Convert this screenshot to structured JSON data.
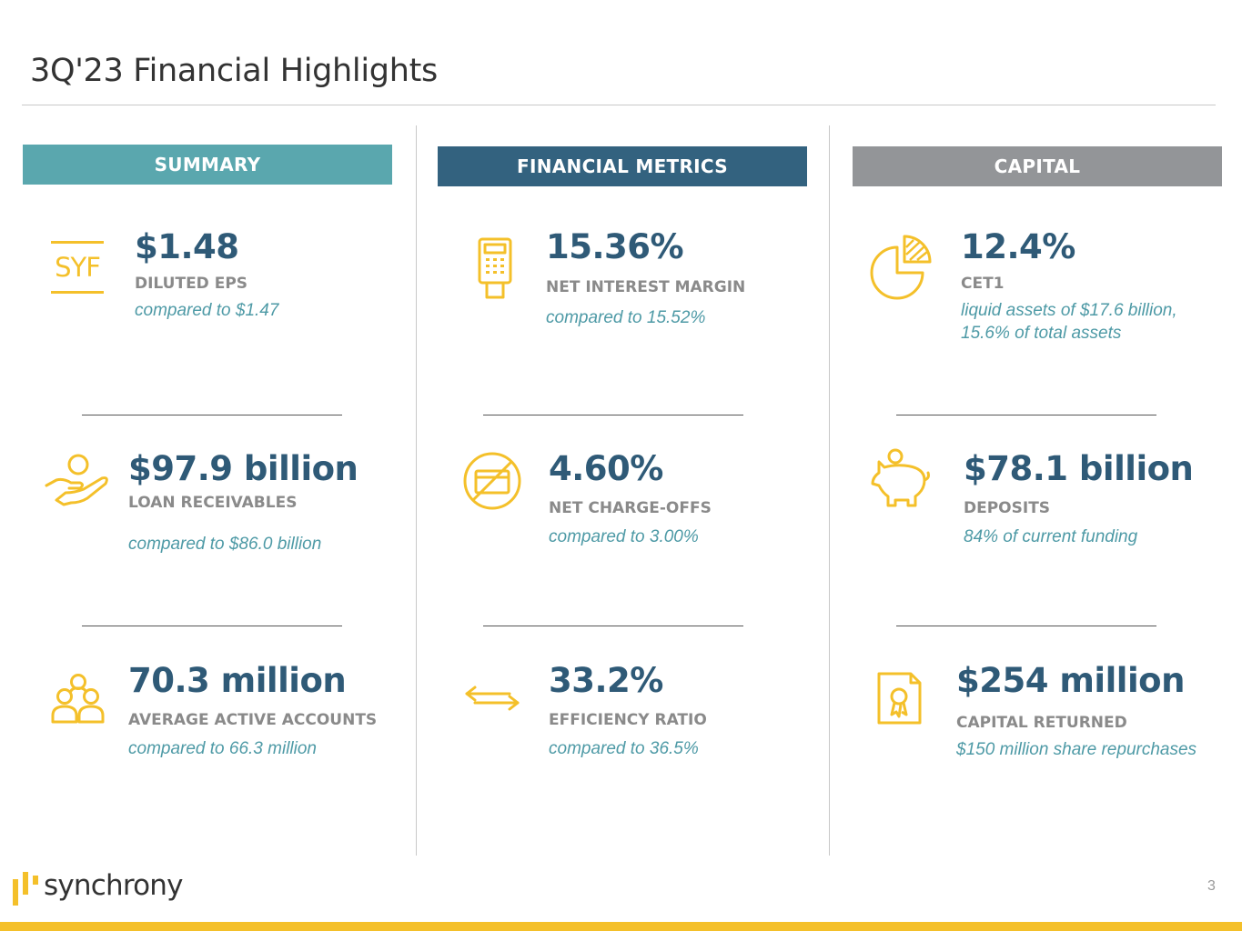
{
  "page": {
    "title": "3Q'23 Financial Highlights",
    "page_number": "3",
    "brand": "synchrony"
  },
  "colors": {
    "summary_header": "#5aa7ae",
    "metrics_header": "#33627f",
    "capital_header": "#939598",
    "value_text": "#2f5a77",
    "label_text": "#8a8a8a",
    "note_text": "#4e9aa6",
    "icon": "#f4c02a"
  },
  "columns": [
    {
      "header": "SUMMARY",
      "items": [
        {
          "icon": "syf-logo-icon",
          "icon_text": "SYF",
          "value": "$1.48",
          "label": "DILUTED EPS",
          "note": "compared to $1.47"
        },
        {
          "icon": "hand-person-icon",
          "value": "$97.9 billion",
          "label": "LOAN RECEIVABLES",
          "note": "compared to $86.0 billion"
        },
        {
          "icon": "people-group-icon",
          "value": "70.3 million",
          "label": "AVERAGE ACTIVE ACCOUNTS",
          "note": "compared to 66.3 million"
        }
      ]
    },
    {
      "header": "FINANCIAL METRICS",
      "items": [
        {
          "icon": "card-terminal-icon",
          "value": "15.36%",
          "label": "NET INTEREST MARGIN",
          "note": "compared to 15.52%"
        },
        {
          "icon": "no-card-icon",
          "value": "4.60%",
          "label": "NET CHARGE-OFFS",
          "note": "compared to 3.00%"
        },
        {
          "icon": "double-arrow-icon",
          "value": "33.2%",
          "label": "EFFICIENCY RATIO",
          "note": "compared to 36.5%"
        }
      ]
    },
    {
      "header": "CAPITAL",
      "items": [
        {
          "icon": "pie-chart-icon",
          "value": "12.4%",
          "label": "CET1",
          "note_lines": [
            "liquid assets of $17.6 billion,",
            "15.6% of total assets"
          ]
        },
        {
          "icon": "piggy-bank-icon",
          "value": "$78.1 billion",
          "label": "DEPOSITS",
          "note": "84% of current funding"
        },
        {
          "icon": "certificate-icon",
          "value": "$254 million",
          "label": "CAPITAL RETURNED",
          "note": "$150 million share repurchases"
        }
      ]
    }
  ]
}
